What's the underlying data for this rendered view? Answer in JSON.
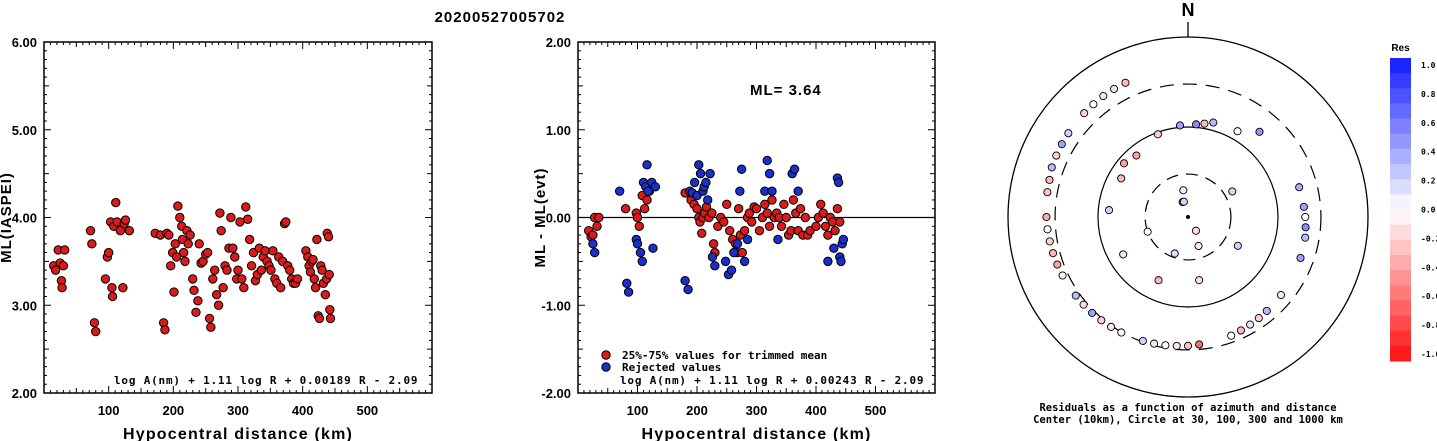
{
  "page_title": "20200527005702",
  "chart_data": [
    {
      "type": "scatter",
      "ylabel": "ML(IASPEI)",
      "xlabel": "Hypocentral distance (km)",
      "xlim": [
        0,
        600
      ],
      "ylim": [
        2.0,
        6.0
      ],
      "xticks": [
        "100",
        "200",
        "300",
        "400",
        "500"
      ],
      "yticks": [
        "2.00",
        "3.00",
        "4.00",
        "5.00",
        "6.00"
      ],
      "formula": "log A(nm) + 1.11 log R + 0.00189 R - 2.09",
      "point_color": "#dd1a1a",
      "points": [
        [
          15,
          3.45
        ],
        [
          18,
          3.4
        ],
        [
          22,
          3.63
        ],
        [
          25,
          3.48
        ],
        [
          27,
          3.28
        ],
        [
          28,
          3.2
        ],
        [
          30,
          3.45
        ],
        [
          32,
          3.63
        ],
        [
          72,
          3.85
        ],
        [
          74,
          3.7
        ],
        [
          78,
          2.8
        ],
        [
          80,
          2.7
        ],
        [
          95,
          3.3
        ],
        [
          98,
          3.55
        ],
        [
          100,
          3.6
        ],
        [
          103,
          3.95
        ],
        [
          105,
          3.2
        ],
        [
          106,
          3.1
        ],
        [
          108,
          3.9
        ],
        [
          111,
          4.17
        ],
        [
          113,
          3.95
        ],
        [
          118,
          3.85
        ],
        [
          122,
          3.2
        ],
        [
          124,
          3.93
        ],
        [
          126,
          3.97
        ],
        [
          132,
          3.85
        ],
        [
          172,
          3.82
        ],
        [
          180,
          3.8
        ],
        [
          185,
          2.8
        ],
        [
          187,
          2.72
        ],
        [
          190,
          3.82
        ],
        [
          193,
          3.8
        ],
        [
          196,
          3.45
        ],
        [
          199,
          3.6
        ],
        [
          201,
          3.15
        ],
        [
          203,
          3.7
        ],
        [
          205,
          3.55
        ],
        [
          207,
          4.13
        ],
        [
          210,
          4.0
        ],
        [
          213,
          3.9
        ],
        [
          214,
          3.75
        ],
        [
          216,
          3.6
        ],
        [
          218,
          3.5
        ],
        [
          221,
          3.85
        ],
        [
          223,
          3.7
        ],
        [
          226,
          3.8
        ],
        [
          230,
          3.3
        ],
        [
          232,
          3.17
        ],
        [
          235,
          2.92
        ],
        [
          238,
          3.05
        ],
        [
          240,
          3.7
        ],
        [
          243,
          3.48
        ],
        [
          246,
          3.5
        ],
        [
          250,
          3.58
        ],
        [
          253,
          3.6
        ],
        [
          256,
          2.85
        ],
        [
          258,
          2.75
        ],
        [
          261,
          3.3
        ],
        [
          264,
          3.4
        ],
        [
          267,
          3.12
        ],
        [
          270,
          3.0
        ],
        [
          272,
          4.05
        ],
        [
          274,
          3.85
        ],
        [
          277,
          3.2
        ],
        [
          280,
          3.45
        ],
        [
          283,
          3.4
        ],
        [
          286,
          3.65
        ],
        [
          289,
          4.0
        ],
        [
          292,
          3.65
        ],
        [
          295,
          3.55
        ],
        [
          298,
          3.3
        ],
        [
          300,
          3.4
        ],
        [
          303,
          3.95
        ],
        [
          306,
          3.3
        ],
        [
          309,
          3.2
        ],
        [
          312,
          4.12
        ],
        [
          315,
          3.98
        ],
        [
          318,
          3.75
        ],
        [
          321,
          3.45
        ],
        [
          324,
          3.6
        ],
        [
          327,
          3.28
        ],
        [
          330,
          3.35
        ],
        [
          333,
          3.65
        ],
        [
          336,
          3.4
        ],
        [
          339,
          3.55
        ],
        [
          342,
          3.62
        ],
        [
          345,
          3.5
        ],
        [
          348,
          3.45
        ],
        [
          351,
          3.4
        ],
        [
          354,
          3.62
        ],
        [
          357,
          3.3
        ],
        [
          360,
          3.25
        ],
        [
          363,
          3.55
        ],
        [
          366,
          3.2
        ],
        [
          369,
          3.5
        ],
        [
          372,
          3.93
        ],
        [
          374,
          3.95
        ],
        [
          377,
          3.45
        ],
        [
          380,
          3.4
        ],
        [
          383,
          3.3
        ],
        [
          386,
          3.25
        ],
        [
          389,
          3.25
        ],
        [
          392,
          3.3
        ],
        [
          405,
          3.62
        ],
        [
          408,
          3.55
        ],
        [
          410,
          3.45
        ],
        [
          412,
          3.38
        ],
        [
          414,
          3.5
        ],
        [
          416,
          3.52
        ],
        [
          418,
          3.3
        ],
        [
          420,
          3.2
        ],
        [
          422,
          3.75
        ],
        [
          424,
          2.88
        ],
        [
          426,
          2.85
        ],
        [
          428,
          3.45
        ],
        [
          430,
          3.4
        ],
        [
          432,
          3.25
        ],
        [
          435,
          3.12
        ],
        [
          437,
          3.3
        ],
        [
          438,
          3.82
        ],
        [
          440,
          3.78
        ],
        [
          441,
          3.35
        ],
        [
          442,
          2.95
        ],
        [
          443,
          2.85
        ]
      ]
    },
    {
      "type": "scatter",
      "ylabel": "ML - ML(evt)",
      "xlabel": "Hypocentral distance (km)",
      "xlim": [
        0,
        600
      ],
      "ylim": [
        -2.0,
        2.0
      ],
      "xticks": [
        "100",
        "200",
        "300",
        "400",
        "500"
      ],
      "yticks": [
        "-2.00",
        "-1.00",
        "0.00",
        "1.00",
        "2.00"
      ],
      "annotation": "ML= 3.64",
      "formula": "log A(nm) + 1.11 log R + 0.00243 R - 2.09",
      "legend": [
        "25%-75% values for trimmed mean",
        "Rejected values"
      ],
      "series_colors": [
        "#dd1a1a",
        "#1a2fcc"
      ],
      "trimmed_points": [
        [
          18,
          -0.15
        ],
        [
          22,
          -0.22
        ],
        [
          25,
          -0.2
        ],
        [
          28,
          0.0
        ],
        [
          32,
          -0.1
        ],
        [
          35,
          0.0
        ],
        [
          80,
          0.1
        ],
        [
          98,
          0.05
        ],
        [
          100,
          0.0
        ],
        [
          103,
          -0.1
        ],
        [
          108,
          0.25
        ],
        [
          112,
          0.1
        ],
        [
          116,
          0.2
        ],
        [
          120,
          0.3
        ],
        [
          180,
          0.28
        ],
        [
          190,
          0.2
        ],
        [
          195,
          0.15
        ],
        [
          200,
          0.1
        ],
        [
          203,
          0.0
        ],
        [
          205,
          -0.05
        ],
        [
          208,
          -0.18
        ],
        [
          210,
          0.0
        ],
        [
          213,
          0.05
        ],
        [
          216,
          0.12
        ],
        [
          220,
          0.0
        ],
        [
          225,
          0.05
        ],
        [
          228,
          -0.3
        ],
        [
          230,
          -0.4
        ],
        [
          235,
          -0.1
        ],
        [
          240,
          0.0
        ],
        [
          245,
          -0.05
        ],
        [
          250,
          0.15
        ],
        [
          255,
          -0.15
        ],
        [
          260,
          -0.25
        ],
        [
          265,
          -0.3
        ],
        [
          268,
          -0.4
        ],
        [
          270,
          0.1
        ],
        [
          273,
          -0.2
        ],
        [
          276,
          -0.4
        ],
        [
          280,
          -0.15
        ],
        [
          285,
          0.0
        ],
        [
          288,
          0.05
        ],
        [
          292,
          -0.05
        ],
        [
          296,
          0.12
        ],
        [
          300,
          0.1
        ],
        [
          305,
          -0.15
        ],
        [
          310,
          0.0
        ],
        [
          314,
          0.15
        ],
        [
          318,
          0.05
        ],
        [
          322,
          -0.1
        ],
        [
          326,
          0.2
        ],
        [
          330,
          0.0
        ],
        [
          334,
          0.05
        ],
        [
          338,
          0.0
        ],
        [
          342,
          -0.1
        ],
        [
          346,
          0.15
        ],
        [
          350,
          0.0
        ],
        [
          354,
          -0.2
        ],
        [
          358,
          -0.15
        ],
        [
          362,
          0.2
        ],
        [
          366,
          0.05
        ],
        [
          370,
          -0.15
        ],
        [
          374,
          0.1
        ],
        [
          378,
          -0.2
        ],
        [
          382,
          0.0
        ],
        [
          386,
          -0.2
        ],
        [
          390,
          -0.15
        ],
        [
          400,
          -0.1
        ],
        [
          404,
          0.0
        ],
        [
          408,
          0.15
        ],
        [
          412,
          0.05
        ],
        [
          416,
          -0.1
        ],
        [
          420,
          -0.2
        ],
        [
          424,
          0.0
        ],
        [
          428,
          -0.05
        ],
        [
          432,
          -0.15
        ],
        [
          436,
          0.1
        ],
        [
          440,
          -0.05
        ]
      ],
      "rejected_points": [
        [
          25,
          -0.3
        ],
        [
          28,
          -0.4
        ],
        [
          70,
          0.3
        ],
        [
          82,
          -0.75
        ],
        [
          85,
          -0.85
        ],
        [
          98,
          -0.25
        ],
        [
          100,
          -0.3
        ],
        [
          105,
          -0.4
        ],
        [
          108,
          -0.5
        ],
        [
          110,
          0.4
        ],
        [
          114,
          0.35
        ],
        [
          116,
          0.6
        ],
        [
          118,
          0.3
        ],
        [
          124,
          0.4
        ],
        [
          126,
          -0.35
        ],
        [
          130,
          0.35
        ],
        [
          180,
          -0.72
        ],
        [
          185,
          -0.82
        ],
        [
          188,
          0.3
        ],
        [
          192,
          0.28
        ],
        [
          196,
          0.4
        ],
        [
          200,
          0.25
        ],
        [
          203,
          0.6
        ],
        [
          206,
          0.5
        ],
        [
          210,
          0.3
        ],
        [
          212,
          0.35
        ],
        [
          215,
          0.4
        ],
        [
          218,
          0.2
        ],
        [
          222,
          0.5
        ],
        [
          226,
          -0.45
        ],
        [
          230,
          -0.55
        ],
        [
          248,
          -0.5
        ],
        [
          253,
          -0.65
        ],
        [
          258,
          -0.6
        ],
        [
          262,
          -0.4
        ],
        [
          268,
          -0.3
        ],
        [
          272,
          0.3
        ],
        [
          275,
          0.55
        ],
        [
          280,
          -0.5
        ],
        [
          285,
          -0.25
        ],
        [
          314,
          0.3
        ],
        [
          318,
          0.65
        ],
        [
          322,
          0.5
        ],
        [
          326,
          0.3
        ],
        [
          336,
          -0.25
        ],
        [
          360,
          0.5
        ],
        [
          364,
          0.55
        ],
        [
          370,
          0.3
        ],
        [
          420,
          -0.5
        ],
        [
          430,
          -0.35
        ],
        [
          436,
          0.45
        ],
        [
          438,
          0.4
        ],
        [
          440,
          -0.45
        ],
        [
          442,
          -0.5
        ],
        [
          444,
          -0.3
        ],
        [
          446,
          -0.25
        ]
      ]
    },
    {
      "type": "scatter",
      "north_label": "N",
      "caption_lines": [
        "Residuals as a function of azimuth and distance",
        "Center (10km), Circle at 30, 100, 300 and 1000 km"
      ],
      "colorbar_title": "Res",
      "colorbar_ticks": [
        "1.0",
        "0.8",
        "0.6",
        "0.4",
        "0.2",
        "0.0",
        "-0.2",
        "-0.4",
        "-0.6",
        "-0.8",
        "-1.0"
      ],
      "residual_points": [
        [
          150,
          -0.15
        ],
        [
          160,
          -0.1
        ],
        [
          200,
          0.15
        ],
        [
          250,
          0.0
        ],
        [
          300,
          -0.3
        ],
        [
          320,
          -0.4
        ],
        [
          340,
          -0.2
        ],
        [
          350,
          -0.1
        ],
        [
          355,
          0.4
        ],
        [
          5,
          0.5
        ],
        [
          10,
          -0.3
        ],
        [
          15,
          0.3
        ],
        [
          30,
          0.0
        ],
        [
          40,
          0.45
        ],
        [
          60,
          0.2
        ],
        [
          75,
          0.35
        ],
        [
          85,
          0.4
        ],
        [
          90,
          0.0
        ],
        [
          95,
          0.5
        ],
        [
          100,
          0.3
        ],
        [
          110,
          0.4
        ],
        [
          120,
          0.2
        ],
        [
          130,
          -0.1
        ],
        [
          140,
          0.3
        ],
        [
          145,
          -0.2
        ],
        [
          150,
          0.1
        ],
        [
          155,
          -0.3
        ],
        [
          160,
          0.0
        ],
        [
          170,
          -0.15
        ],
        [
          175,
          -0.6
        ],
        [
          180,
          -0.25
        ],
        [
          185,
          -0.1
        ],
        [
          190,
          0.0
        ],
        [
          195,
          0.1
        ],
        [
          200,
          0.2
        ],
        [
          205,
          -0.3
        ],
        [
          210,
          0.0
        ],
        [
          215,
          -0.1
        ],
        [
          220,
          -0.2
        ],
        [
          225,
          0.4
        ],
        [
          230,
          -0.15
        ],
        [
          235,
          0.3
        ],
        [
          240,
          0.1
        ],
        [
          245,
          -0.05
        ],
        [
          250,
          -0.4
        ],
        [
          255,
          -0.3
        ],
        [
          260,
          -0.2
        ],
        [
          265,
          0.0
        ],
        [
          270,
          -0.35
        ],
        [
          275,
          0.2
        ],
        [
          280,
          -0.25
        ],
        [
          285,
          -0.3
        ],
        [
          290,
          0.3
        ],
        [
          295,
          -0.2
        ],
        [
          300,
          0.4
        ],
        [
          305,
          0.2
        ],
        [
          310,
          -0.4
        ],
        [
          315,
          -0.2
        ],
        [
          320,
          0.0
        ],
        [
          325,
          -0.1
        ],
        [
          330,
          0.1
        ],
        [
          335,
          -0.3
        ],
        [
          340,
          0.5
        ],
        [
          345,
          0.2
        ]
      ]
    }
  ]
}
